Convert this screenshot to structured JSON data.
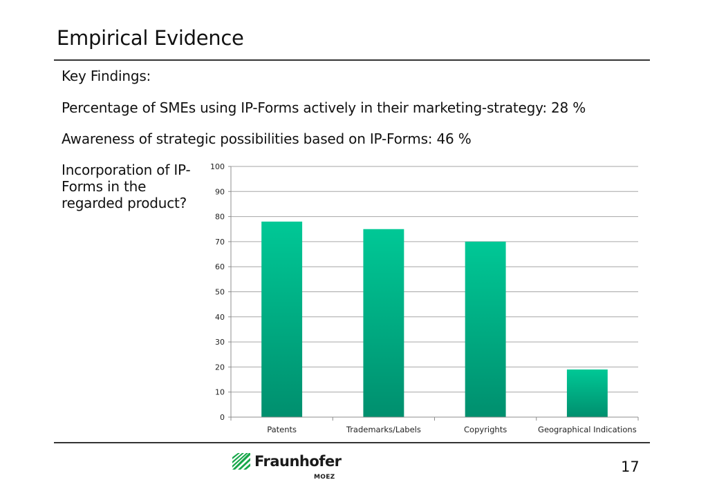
{
  "slide": {
    "title": "Empirical Evidence",
    "lines": [
      "Key Findings:",
      "Percentage of SMEs using IP-Forms actively in their marketing-strategy: 28 %",
      "Awareness of strategic possibilities based on IP-Forms: 46 %"
    ],
    "question": "Incorporation of IP-Forms in the regarded product?",
    "page_number": "17"
  },
  "footer": {
    "brand": "Fraunhofer",
    "sub": "MOEZ"
  },
  "colors": {
    "bar_top": "#00c896",
    "bar_bottom": "#008f6e",
    "gridline": "#a6a6a6",
    "axis": "#8c8c8c",
    "logo_green": "#17a74a"
  },
  "chart_data": {
    "type": "bar",
    "title": "",
    "xlabel": "",
    "ylabel": "",
    "categories": [
      "Patents",
      "Trademarks/Labels",
      "Copyrights",
      "Geographical Indications"
    ],
    "values": [
      78,
      75,
      70,
      19
    ],
    "ylim": [
      0,
      100
    ],
    "yticks": [
      0,
      10,
      20,
      30,
      40,
      50,
      60,
      70,
      80,
      90,
      100
    ],
    "grid": true,
    "legend": "none"
  }
}
